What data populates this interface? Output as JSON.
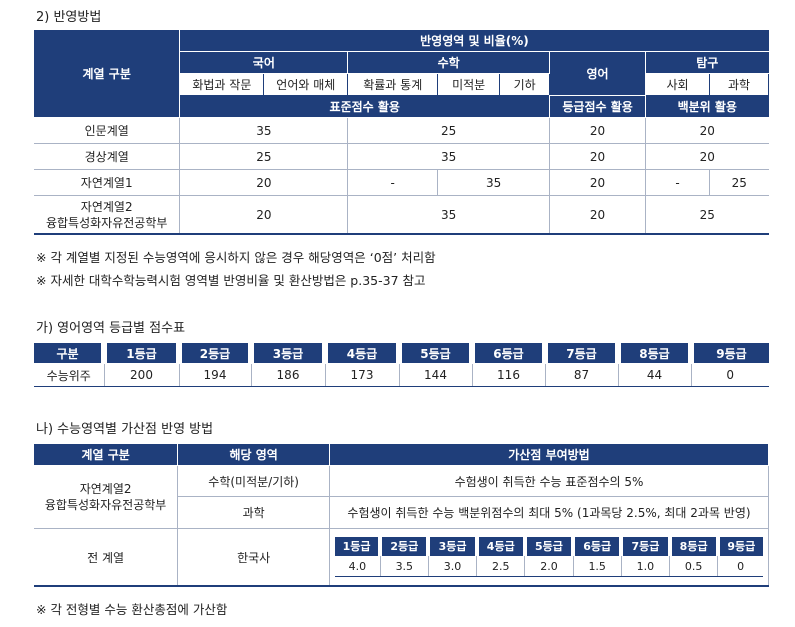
{
  "section1": {
    "heading": "2) 반영방법",
    "header": {
      "group_col": "계열 구분",
      "top": "반영영역 및 비율(%)",
      "korean": "국어",
      "math": "수학",
      "english": "영어",
      "inquiry": "탐구",
      "k_sub1": "화법과 작문",
      "k_sub2": "언어와 매체",
      "m_sub1": "확률과 통계",
      "m_sub2": "미적분",
      "m_sub3": "기하",
      "i_sub1": "사회",
      "i_sub2": "과학",
      "std_score": "표준점수 활용",
      "grade_score": "등급점수 활용",
      "percentile": "백분위 활용"
    },
    "rows": [
      {
        "name": "인문계열",
        "korean": "35",
        "math": "25",
        "english": "20",
        "inquiry": "20"
      },
      {
        "name": "경상계열",
        "korean": "25",
        "math": "35",
        "english": "20",
        "inquiry": "20"
      },
      {
        "name": "자연계열1",
        "korean": "20",
        "math_a": "-",
        "math_b": "35",
        "english": "20",
        "inq_a": "-",
        "inq_b": "25"
      },
      {
        "name_line1": "자연계열2",
        "name_line2": "융합특성화자유전공학부",
        "korean": "20",
        "math": "35",
        "english": "20",
        "inquiry": "25"
      }
    ],
    "note1": "※ 각 계열별 지정된 수능영역에 응시하지 않은 경우 해당영역은 ‘0점’ 처리함",
    "note2": "※ 자세한 대학수학능력시험 영역별 반영비율 및 환산방법은 p.35-37 참고"
  },
  "section2": {
    "heading": "가) 영어영역 등급별 점수표",
    "header": [
      "구분",
      "1등급",
      "2등급",
      "3등급",
      "4등급",
      "5등급",
      "6등급",
      "7등급",
      "8등급",
      "9등급"
    ],
    "row": [
      "수능위주",
      "200",
      "194",
      "186",
      "173",
      "144",
      "116",
      "87",
      "44",
      "0"
    ]
  },
  "section3": {
    "heading": "나) 수능영역별 가산점 반영 방법",
    "header": [
      "계열 구분",
      "해당 영역",
      "가산점 부여방법"
    ],
    "group1_line1": "자연계열2",
    "group1_line2": "융합특성화자유전공학부",
    "area1": "수학(미적분/기하)",
    "method1": "수험생이 취득한 수능 표준점수의 5%",
    "area2": "과학",
    "method2": "수험생이 취득한 수능 백분위점수의 최대 5% (1과목당 2.5%, 최대 2과목 반영)",
    "group2": "전 계열",
    "area3": "한국사",
    "grades": [
      "1등급",
      "2등급",
      "3등급",
      "4등급",
      "5등급",
      "6등급",
      "7등급",
      "8등급",
      "9등급"
    ],
    "grade_values": [
      "4.0",
      "3.5",
      "3.0",
      "2.5",
      "2.0",
      "1.5",
      "1.0",
      "0.5",
      "0"
    ],
    "note": "※ 각 전형별 수능 환산총점에 가산함"
  }
}
